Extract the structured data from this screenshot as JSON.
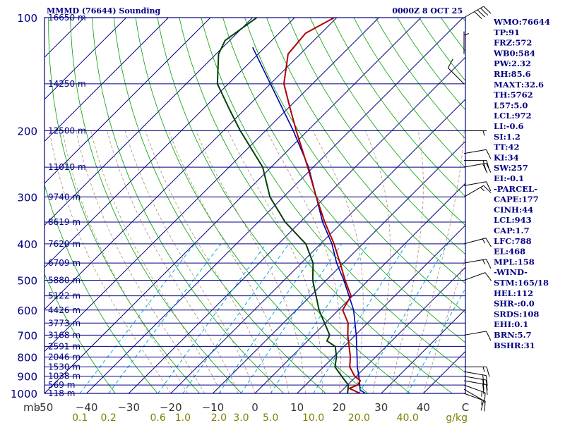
{
  "header": {
    "station": "MMMD (76644) Sounding",
    "valid_time": "0000Z  8 OCT 25"
  },
  "colors": {
    "frame": "#000080",
    "label_blue": "#000080",
    "axis_tick_text": "#333333",
    "isotherm_blue": "#000080",
    "dry_adiabat_green": "#00a000",
    "moist_adiabat_tan": "#b09070",
    "mixing_ratio_cyan": "#00aadd",
    "mixing_label_olive": "#808000",
    "temperature_red": "#b00000",
    "dewpoint_green": "#004000",
    "parcel_blue": "#0000b0",
    "wind_barb": "#000000"
  },
  "chart_data": {
    "type": "skew-t",
    "pressure_levels": [
      "100",
      "200",
      "300",
      "400",
      "500",
      "600",
      "700",
      "800",
      "900",
      "1000"
    ],
    "height_labels": [
      {
        "p": 100,
        "label": "16650 m"
      },
      {
        "p": 150,
        "label": "14250 m"
      },
      {
        "p": 200,
        "label": "12500 m"
      },
      {
        "p": 250,
        "label": "11010 m"
      },
      {
        "p": 300,
        "label": "9740 m"
      },
      {
        "p": 350,
        "label": "8619 m"
      },
      {
        "p": 400,
        "label": "7620 m"
      },
      {
        "p": 450,
        "label": "6709 m"
      },
      {
        "p": 500,
        "label": "5880 m"
      },
      {
        "p": 550,
        "label": "5122 m"
      },
      {
        "p": 600,
        "label": "4426 m"
      },
      {
        "p": 650,
        "label": "3773 m"
      },
      {
        "p": 700,
        "label": "3168 m"
      },
      {
        "p": 750,
        "label": "2591 m"
      },
      {
        "p": 800,
        "label": "2046 m"
      },
      {
        "p": 850,
        "label": "1530 m"
      },
      {
        "p": 900,
        "label": "1038 m"
      },
      {
        "p": 950,
        "label": "569 m"
      },
      {
        "p": 1000,
        "label": "118 m"
      }
    ],
    "temperature_axis": {
      "unit_left": "mb",
      "ticks": [
        "-50",
        "−40",
        "−30",
        "−20",
        "−10",
        "0",
        "10",
        "20",
        "30",
        "40",
        "C"
      ],
      "tick_values": [
        -50,
        -40,
        -30,
        -20,
        -10,
        0,
        10,
        20,
        30,
        40,
        50
      ],
      "range": [
        -50,
        50
      ]
    },
    "mixing_ratio_axis": {
      "unit": "g/kg",
      "ticks": [
        "0.1",
        "0.2",
        "0.6",
        "1.0",
        "2.0",
        "3.0",
        "5.0",
        "10.0",
        "20.0",
        "40.0"
      ],
      "values": [
        0.1,
        0.2,
        0.6,
        1.0,
        2.0,
        3.0,
        5.0,
        10.0,
        20.0,
        40.0
      ]
    },
    "pressure_range": [
      100,
      1000
    ],
    "log_pressure": true,
    "temperature": [
      {
        "p": 1000,
        "t": 25.0
      },
      {
        "p": 970,
        "t": 21.2
      },
      {
        "p": 950,
        "t": 22.4
      },
      {
        "p": 925,
        "t": 22.0
      },
      {
        "p": 900,
        "t": 19.6
      },
      {
        "p": 850,
        "t": 16.2
      },
      {
        "p": 800,
        "t": 14.0
      },
      {
        "p": 750,
        "t": 11.2
      },
      {
        "p": 700,
        "t": 8.2
      },
      {
        "p": 650,
        "t": 5.4
      },
      {
        "p": 600,
        "t": 1.0
      },
      {
        "p": 550,
        "t": -0.4
      },
      {
        "p": 500,
        "t": -5.5
      },
      {
        "p": 450,
        "t": -10.8
      },
      {
        "p": 400,
        "t": -16.8
      },
      {
        "p": 350,
        "t": -24.2
      },
      {
        "p": 300,
        "t": -32.2
      },
      {
        "p": 250,
        "t": -41.3
      },
      {
        "p": 200,
        "t": -52.7
      },
      {
        "p": 175,
        "t": -59.3
      },
      {
        "p": 150,
        "t": -66.8
      },
      {
        "p": 125,
        "t": -72.9
      },
      {
        "p": 110,
        "t": -73.7
      },
      {
        "p": 100,
        "t": -70.6
      }
    ],
    "dewpoint": [
      {
        "p": 1000,
        "t": 22.0
      },
      {
        "p": 950,
        "t": 20.2
      },
      {
        "p": 900,
        "t": 16.5
      },
      {
        "p": 850,
        "t": 12.7
      },
      {
        "p": 800,
        "t": 10.7
      },
      {
        "p": 750,
        "t": 7.9
      },
      {
        "p": 725,
        "t": 4.6
      },
      {
        "p": 700,
        "t": 3.9
      },
      {
        "p": 600,
        "t": -4.6
      },
      {
        "p": 500,
        "t": -13.2
      },
      {
        "p": 450,
        "t": -17.2
      },
      {
        "p": 400,
        "t": -23.5
      },
      {
        "p": 350,
        "t": -33.6
      },
      {
        "p": 300,
        "t": -43.2
      },
      {
        "p": 250,
        "t": -52.0
      },
      {
        "p": 200,
        "t": -66.0
      },
      {
        "p": 175,
        "t": -73.8
      },
      {
        "p": 150,
        "t": -82.6
      },
      {
        "p": 125,
        "t": -89.4
      },
      {
        "p": 115,
        "t": -91.1
      },
      {
        "p": 100,
        "t": -89.0
      }
    ],
    "parcel": [
      {
        "p": 1000,
        "t": 26.3
      },
      {
        "p": 980,
        "t": 24.2
      },
      {
        "p": 950,
        "t": 22.9
      },
      {
        "p": 900,
        "t": 20.6
      },
      {
        "p": 850,
        "t": 18.0
      },
      {
        "p": 800,
        "t": 15.6
      },
      {
        "p": 700,
        "t": 10.2
      },
      {
        "p": 600,
        "t": 3.6
      },
      {
        "p": 500,
        "t": -5.8
      },
      {
        "p": 450,
        "t": -11.6
      },
      {
        "p": 400,
        "t": -17.3
      },
      {
        "p": 350,
        "t": -24.7
      },
      {
        "p": 300,
        "t": -32.2
      },
      {
        "p": 250,
        "t": -41.1
      },
      {
        "p": 200,
        "t": -53.4
      },
      {
        "p": 150,
        "t": -70.0
      },
      {
        "p": 120,
        "t": -82.9
      }
    ],
    "wind_barbs": [
      {
        "p": 1000,
        "dir": 110,
        "spd": 15
      },
      {
        "p": 975,
        "dir": 120,
        "spd": 10
      },
      {
        "p": 950,
        "dir": 110,
        "spd": 15
      },
      {
        "p": 925,
        "dir": 100,
        "spd": 20
      },
      {
        "p": 900,
        "dir": 100,
        "spd": 20
      },
      {
        "p": 875,
        "dir": 100,
        "spd": 20
      },
      {
        "p": 850,
        "dir": 90,
        "spd": 15
      },
      {
        "p": 700,
        "dir": 80,
        "spd": 10
      },
      {
        "p": 500,
        "dir": 70,
        "spd": 10
      },
      {
        "p": 450,
        "dir": 80,
        "spd": 15
      },
      {
        "p": 400,
        "dir": 75,
        "spd": 15
      },
      {
        "p": 300,
        "dir": 60,
        "spd": 15
      },
      {
        "p": 280,
        "dir": 80,
        "spd": 10
      },
      {
        "p": 250,
        "dir": 80,
        "spd": 20
      },
      {
        "p": 240,
        "dir": 90,
        "spd": 20
      },
      {
        "p": 230,
        "dir": 80,
        "spd": 10
      },
      {
        "p": 200,
        "dir": 90,
        "spd": 5
      },
      {
        "p": 150,
        "dir": 315,
        "spd": 10
      },
      {
        "p": 125,
        "dir": 0,
        "spd": 5
      },
      {
        "p": 100,
        "dir": 60,
        "spd": 40
      }
    ]
  },
  "indices": [
    "WMO:76644",
    "TP:91",
    "FRZ:572",
    "WB0:584",
    "PW:2.32",
    "RH:85.6",
    "MAXT:32.6",
    "TH:5762",
    "L57:5.0",
    "LCL:972",
    "LI:-0.6",
    "SI:1.2",
    "TT:42",
    "KI:34",
    "SW:257",
    "EI:-0.1",
    "-PARCEL-",
    "CAPE:177",
    "CINH:44",
    "LCL:943",
    "CAP:1.7",
    "LFC:788",
    "EL:468",
    "MPL:158",
    "-WIND-",
    "STM:165/18",
    "HEL:112",
    "SHR-:0.0",
    "SRDS:108",
    "EHI:0.1",
    "BRN:5.7",
    "BSHR:31"
  ]
}
